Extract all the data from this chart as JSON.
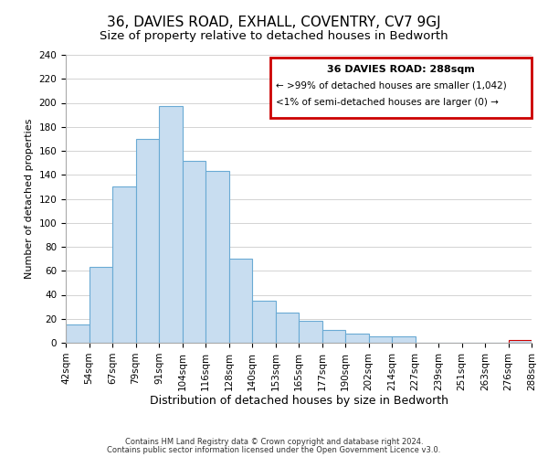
{
  "title": "36, DAVIES ROAD, EXHALL, COVENTRY, CV7 9GJ",
  "subtitle": "Size of property relative to detached houses in Bedworth",
  "xlabel": "Distribution of detached houses by size in Bedworth",
  "ylabel": "Number of detached properties",
  "bar_labels": [
    "42sqm",
    "54sqm",
    "67sqm",
    "79sqm",
    "91sqm",
    "104sqm",
    "116sqm",
    "128sqm",
    "140sqm",
    "153sqm",
    "165sqm",
    "177sqm",
    "190sqm",
    "202sqm",
    "214sqm",
    "227sqm",
    "239sqm",
    "251sqm",
    "263sqm",
    "276sqm",
    "288sqm"
  ],
  "bar_values": [
    15,
    63,
    130,
    170,
    197,
    152,
    143,
    70,
    35,
    25,
    18,
    11,
    8,
    5,
    5,
    0,
    0,
    0,
    0,
    2
  ],
  "bar_color": "#c8ddf0",
  "bar_edge_color": "#6aaad4",
  "highlight_bar_index": 19,
  "highlight_bar_edge_color": "#cc0000",
  "ylim": [
    0,
    240
  ],
  "yticks": [
    0,
    20,
    40,
    60,
    80,
    100,
    120,
    140,
    160,
    180,
    200,
    220,
    240
  ],
  "grid_color": "#cccccc",
  "background_color": "#ffffff",
  "legend_title": "36 DAVIES ROAD: 288sqm",
  "legend_line1": "← >99% of detached houses are smaller (1,042)",
  "legend_line2": "<1% of semi-detached houses are larger (0) →",
  "legend_box_color": "#ffffff",
  "legend_border_color": "#cc0000",
  "footnote1": "Contains HM Land Registry data © Crown copyright and database right 2024.",
  "footnote2": "Contains public sector information licensed under the Open Government Licence v3.0.",
  "title_fontsize": 11,
  "subtitle_fontsize": 9.5,
  "xlabel_fontsize": 9,
  "ylabel_fontsize": 8,
  "tick_fontsize": 7.5
}
